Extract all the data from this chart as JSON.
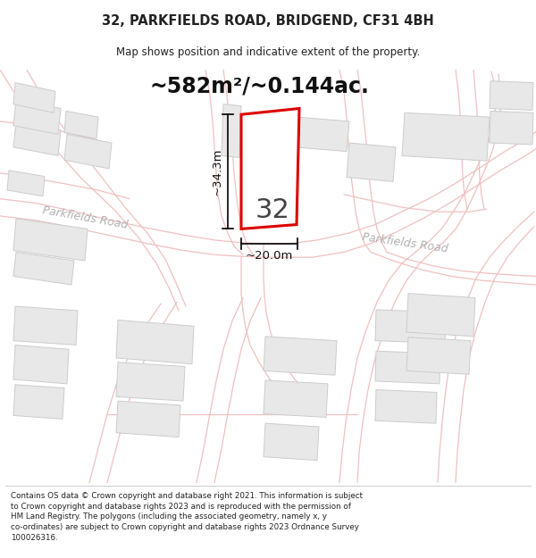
{
  "title": "32, PARKFIELDS ROAD, BRIDGEND, CF31 4BH",
  "subtitle": "Map shows position and indicative extent of the property.",
  "area_text": "~582m²/~0.144ac.",
  "label_32": "32",
  "dim_height": "~34.3m",
  "dim_width": "~20.0m",
  "road_label_left": "Parkfields Road",
  "road_label_right": "Parkfields Road",
  "footer": "Contains OS data © Crown copyright and database right 2021. This information is subject to Crown copyright and database rights 2023 and is reproduced with the permission of HM Land Registry. The polygons (including the associated geometry, namely x, y co-ordinates) are subject to Crown copyright and database rights 2023 Ordnance Survey 100026316.",
  "bg_color": "#ffffff",
  "map_bg": "#ffffff",
  "road_color": "#f0c0c0",
  "road_lw": 1.0,
  "building_fill": "#e8e8e8",
  "building_edge": "#cccccc",
  "plot_fill": "#ffffff",
  "plot_edge": "#dd0000",
  "plot_linewidth": 2.2,
  "text_color": "#222222",
  "road_text_color": "#aaaaaa",
  "footer_color": "#222222"
}
